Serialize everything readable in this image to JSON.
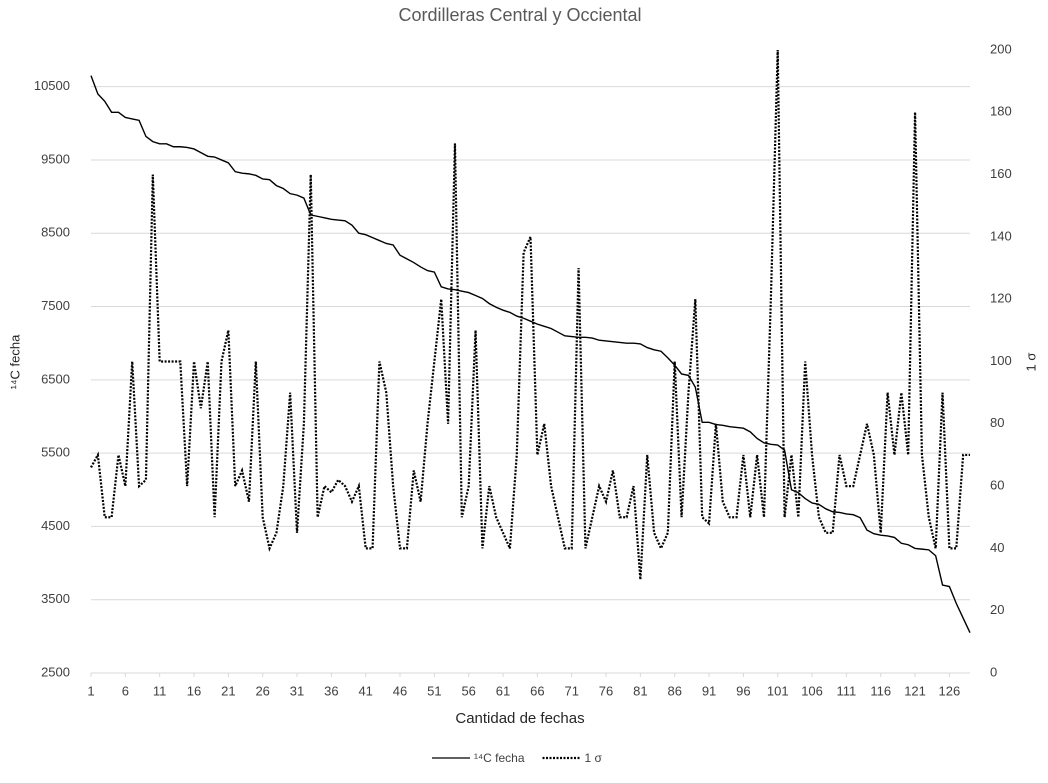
{
  "chart_data": {
    "type": "line",
    "title": "Cordilleras Central y Occiental",
    "x_label": "Cantidad de fechas",
    "y_label": "¹⁴C fecha",
    "y2_label": "1 σ",
    "x": [
      1,
      2,
      3,
      4,
      5,
      6,
      7,
      8,
      9,
      10,
      11,
      12,
      13,
      14,
      15,
      16,
      17,
      18,
      19,
      20,
      21,
      22,
      23,
      24,
      25,
      26,
      27,
      28,
      29,
      30,
      31,
      32,
      33,
      34,
      35,
      36,
      37,
      38,
      39,
      40,
      41,
      42,
      43,
      44,
      45,
      46,
      47,
      48,
      49,
      50,
      51,
      52,
      53,
      54,
      55,
      56,
      57,
      58,
      59,
      60,
      61,
      62,
      63,
      64,
      65,
      66,
      67,
      68,
      69,
      70,
      71,
      72,
      73,
      74,
      75,
      76,
      77,
      78,
      79,
      80,
      81,
      82,
      83,
      84,
      85,
      86,
      87,
      88,
      89,
      90,
      91,
      92,
      93,
      94,
      95,
      96,
      97,
      98,
      99,
      100,
      101,
      102,
      103,
      104,
      105,
      106,
      107,
      108,
      109,
      110,
      111,
      112,
      113,
      114,
      115,
      116,
      117,
      118,
      119,
      120,
      121,
      122,
      123,
      124,
      125,
      126,
      127,
      128,
      129
    ],
    "xlim": [
      1,
      129
    ],
    "xticks": [
      1,
      6,
      11,
      16,
      21,
      26,
      31,
      36,
      41,
      46,
      51,
      56,
      61,
      66,
      71,
      76,
      81,
      86,
      91,
      96,
      101,
      106,
      111,
      116,
      121,
      126
    ],
    "ylim": [
      2500,
      11000
    ],
    "yticks": [
      2500,
      3500,
      4500,
      5500,
      6500,
      7500,
      8500,
      9500,
      10500
    ],
    "y2lim": [
      0,
      200
    ],
    "y2ticks": [
      0,
      20,
      40,
      60,
      80,
      100,
      120,
      140,
      160,
      180,
      200
    ],
    "grid": true,
    "series": [
      {
        "name": "¹⁴C fecha",
        "color": "#000000",
        "line_style": "solid",
        "values": [
          10650,
          10400,
          10300,
          10150,
          10150,
          10080,
          10060,
          10040,
          9820,
          9750,
          9720,
          9720,
          9680,
          9680,
          9670,
          9650,
          9600,
          9550,
          9540,
          9500,
          9460,
          9340,
          9320,
          9310,
          9290,
          9240,
          9230,
          9150,
          9110,
          9040,
          9020,
          8980,
          8750,
          8730,
          8710,
          8690,
          8680,
          8670,
          8610,
          8500,
          8480,
          8440,
          8400,
          8360,
          8340,
          8200,
          8150,
          8100,
          8040,
          7990,
          7970,
          7770,
          7740,
          7730,
          7710,
          7690,
          7650,
          7610,
          7540,
          7490,
          7450,
          7420,
          7370,
          7340,
          7300,
          7260,
          7230,
          7200,
          7150,
          7100,
          7090,
          7080,
          7080,
          7070,
          7040,
          7030,
          7020,
          7010,
          7000,
          7000,
          6990,
          6940,
          6910,
          6890,
          6800,
          6700,
          6580,
          6560,
          6400,
          5920,
          5920,
          5890,
          5880,
          5860,
          5850,
          5840,
          5790,
          5700,
          5640,
          5620,
          5610,
          5540,
          5000,
          4960,
          4880,
          4820,
          4800,
          4740,
          4700,
          4690,
          4670,
          4660,
          4620,
          4450,
          4400,
          4380,
          4370,
          4350,
          4270,
          4250,
          4200,
          4190,
          4180,
          4100,
          3700,
          3680,
          3450,
          3250,
          3050
        ]
      },
      {
        "name": "1 σ",
        "color": "#000000",
        "line_style": "dotted",
        "axis": "y2",
        "values": [
          66,
          70,
          50,
          50,
          70,
          60,
          100,
          60,
          62,
          160,
          100,
          100,
          100,
          100,
          60,
          100,
          85,
          100,
          50,
          100,
          110,
          60,
          65,
          55,
          100,
          50,
          40,
          45,
          60,
          90,
          45,
          80,
          160,
          50,
          60,
          58,
          62,
          60,
          55,
          60,
          40,
          40,
          100,
          90,
          60,
          40,
          40,
          65,
          55,
          80,
          100,
          120,
          80,
          170,
          50,
          60,
          110,
          40,
          60,
          50,
          45,
          40,
          70,
          135,
          140,
          70,
          80,
          60,
          50,
          40,
          40,
          130,
          40,
          50,
          60,
          55,
          65,
          50,
          50,
          60,
          30,
          70,
          45,
          40,
          45,
          100,
          50,
          90,
          120,
          50,
          48,
          80,
          55,
          50,
          50,
          70,
          50,
          70,
          50,
          120,
          200,
          50,
          70,
          50,
          100,
          70,
          50,
          45,
          45,
          70,
          60,
          60,
          70,
          80,
          70,
          45,
          90,
          70,
          90,
          70,
          180,
          70,
          50,
          40,
          90,
          40,
          40,
          70,
          70
        ]
      }
    ]
  }
}
